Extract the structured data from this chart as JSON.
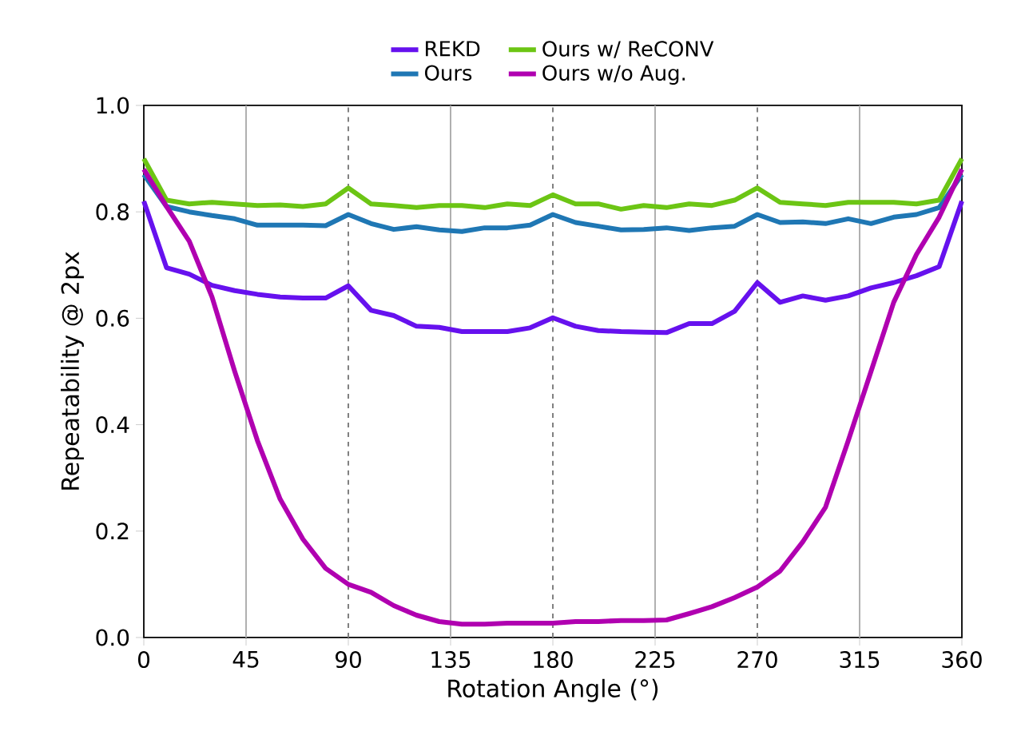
{
  "chart_data": {
    "type": "line",
    "xlabel": "Rotation Angle (°)",
    "ylabel": "Repeatability @ 2px",
    "x": [
      0,
      10,
      20,
      30,
      40,
      50,
      60,
      70,
      80,
      90,
      100,
      110,
      120,
      130,
      140,
      150,
      160,
      170,
      180,
      190,
      200,
      210,
      220,
      230,
      240,
      250,
      260,
      270,
      280,
      290,
      300,
      310,
      320,
      330,
      340,
      350,
      360
    ],
    "series": [
      {
        "name": "REKD",
        "color": "#6611ee",
        "values": [
          0.82,
          0.695,
          0.683,
          0.662,
          0.652,
          0.645,
          0.64,
          0.638,
          0.638,
          0.661,
          0.615,
          0.605,
          0.585,
          0.583,
          0.575,
          0.575,
          0.575,
          0.582,
          0.601,
          0.585,
          0.577,
          0.575,
          0.574,
          0.573,
          0.59,
          0.59,
          0.613,
          0.667,
          0.63,
          0.642,
          0.634,
          0.642,
          0.657,
          0.667,
          0.68,
          0.697,
          0.82
        ]
      },
      {
        "name": "Ours",
        "color": "#1f77b4",
        "values": [
          0.87,
          0.81,
          0.8,
          0.793,
          0.787,
          0.775,
          0.775,
          0.775,
          0.774,
          0.795,
          0.778,
          0.767,
          0.772,
          0.766,
          0.763,
          0.77,
          0.77,
          0.775,
          0.795,
          0.78,
          0.773,
          0.766,
          0.767,
          0.77,
          0.765,
          0.77,
          0.773,
          0.795,
          0.78,
          0.781,
          0.778,
          0.787,
          0.778,
          0.79,
          0.795,
          0.808,
          0.87
        ]
      },
      {
        "name": "Ours w/ ReCONV",
        "color": "#6cc514",
        "values": [
          0.9,
          0.822,
          0.815,
          0.818,
          0.815,
          0.812,
          0.813,
          0.81,
          0.815,
          0.845,
          0.815,
          0.812,
          0.808,
          0.812,
          0.812,
          0.808,
          0.815,
          0.812,
          0.832,
          0.815,
          0.815,
          0.805,
          0.812,
          0.808,
          0.815,
          0.812,
          0.822,
          0.845,
          0.818,
          0.815,
          0.812,
          0.818,
          0.818,
          0.818,
          0.815,
          0.822,
          0.9
        ]
      },
      {
        "name": "Ours w/o Aug.",
        "color": "#b000b0",
        "values": [
          0.88,
          0.81,
          0.745,
          0.64,
          0.5,
          0.37,
          0.26,
          0.185,
          0.13,
          0.1,
          0.085,
          0.06,
          0.042,
          0.03,
          0.025,
          0.025,
          0.027,
          0.027,
          0.027,
          0.03,
          0.03,
          0.032,
          0.032,
          0.033,
          0.045,
          0.058,
          0.075,
          0.095,
          0.125,
          0.18,
          0.245,
          0.37,
          0.5,
          0.63,
          0.72,
          0.79,
          0.88
        ]
      }
    ],
    "xlim": [
      0,
      360
    ],
    "ylim": [
      0,
      1.0
    ],
    "xticks": [
      0,
      45,
      90,
      135,
      180,
      225,
      270,
      315,
      360
    ],
    "yticks": [
      {
        "value": 0,
        "label": "0.0"
      },
      {
        "value": 0.2,
        "label": "0.2"
      },
      {
        "value": 0.4,
        "label": "0.4"
      },
      {
        "value": 0.6,
        "label": "0.6"
      },
      {
        "value": 0.8,
        "label": "0.8"
      },
      {
        "value": 1.0,
        "label": "1.0"
      }
    ],
    "ref_lines": [
      {
        "axis": "x",
        "value": 45,
        "color": "#b0b0b0",
        "line_style": "solid"
      },
      {
        "axis": "x",
        "value": 135,
        "color": "#b0b0b0",
        "line_style": "solid"
      },
      {
        "axis": "x",
        "value": 225,
        "color": "#b0b0b0",
        "line_style": "solid"
      },
      {
        "axis": "x",
        "value": 315,
        "color": "#b0b0b0",
        "line_style": "solid"
      },
      {
        "axis": "x",
        "value": 90,
        "color": "#808080",
        "line_style": "dashed"
      },
      {
        "axis": "x",
        "value": 180,
        "color": "#808080",
        "line_style": "dashed"
      },
      {
        "axis": "x",
        "value": 270,
        "color": "#808080",
        "line_style": "dashed"
      }
    ],
    "legend": "top",
    "marker": "none",
    "line_style": "solid"
  }
}
